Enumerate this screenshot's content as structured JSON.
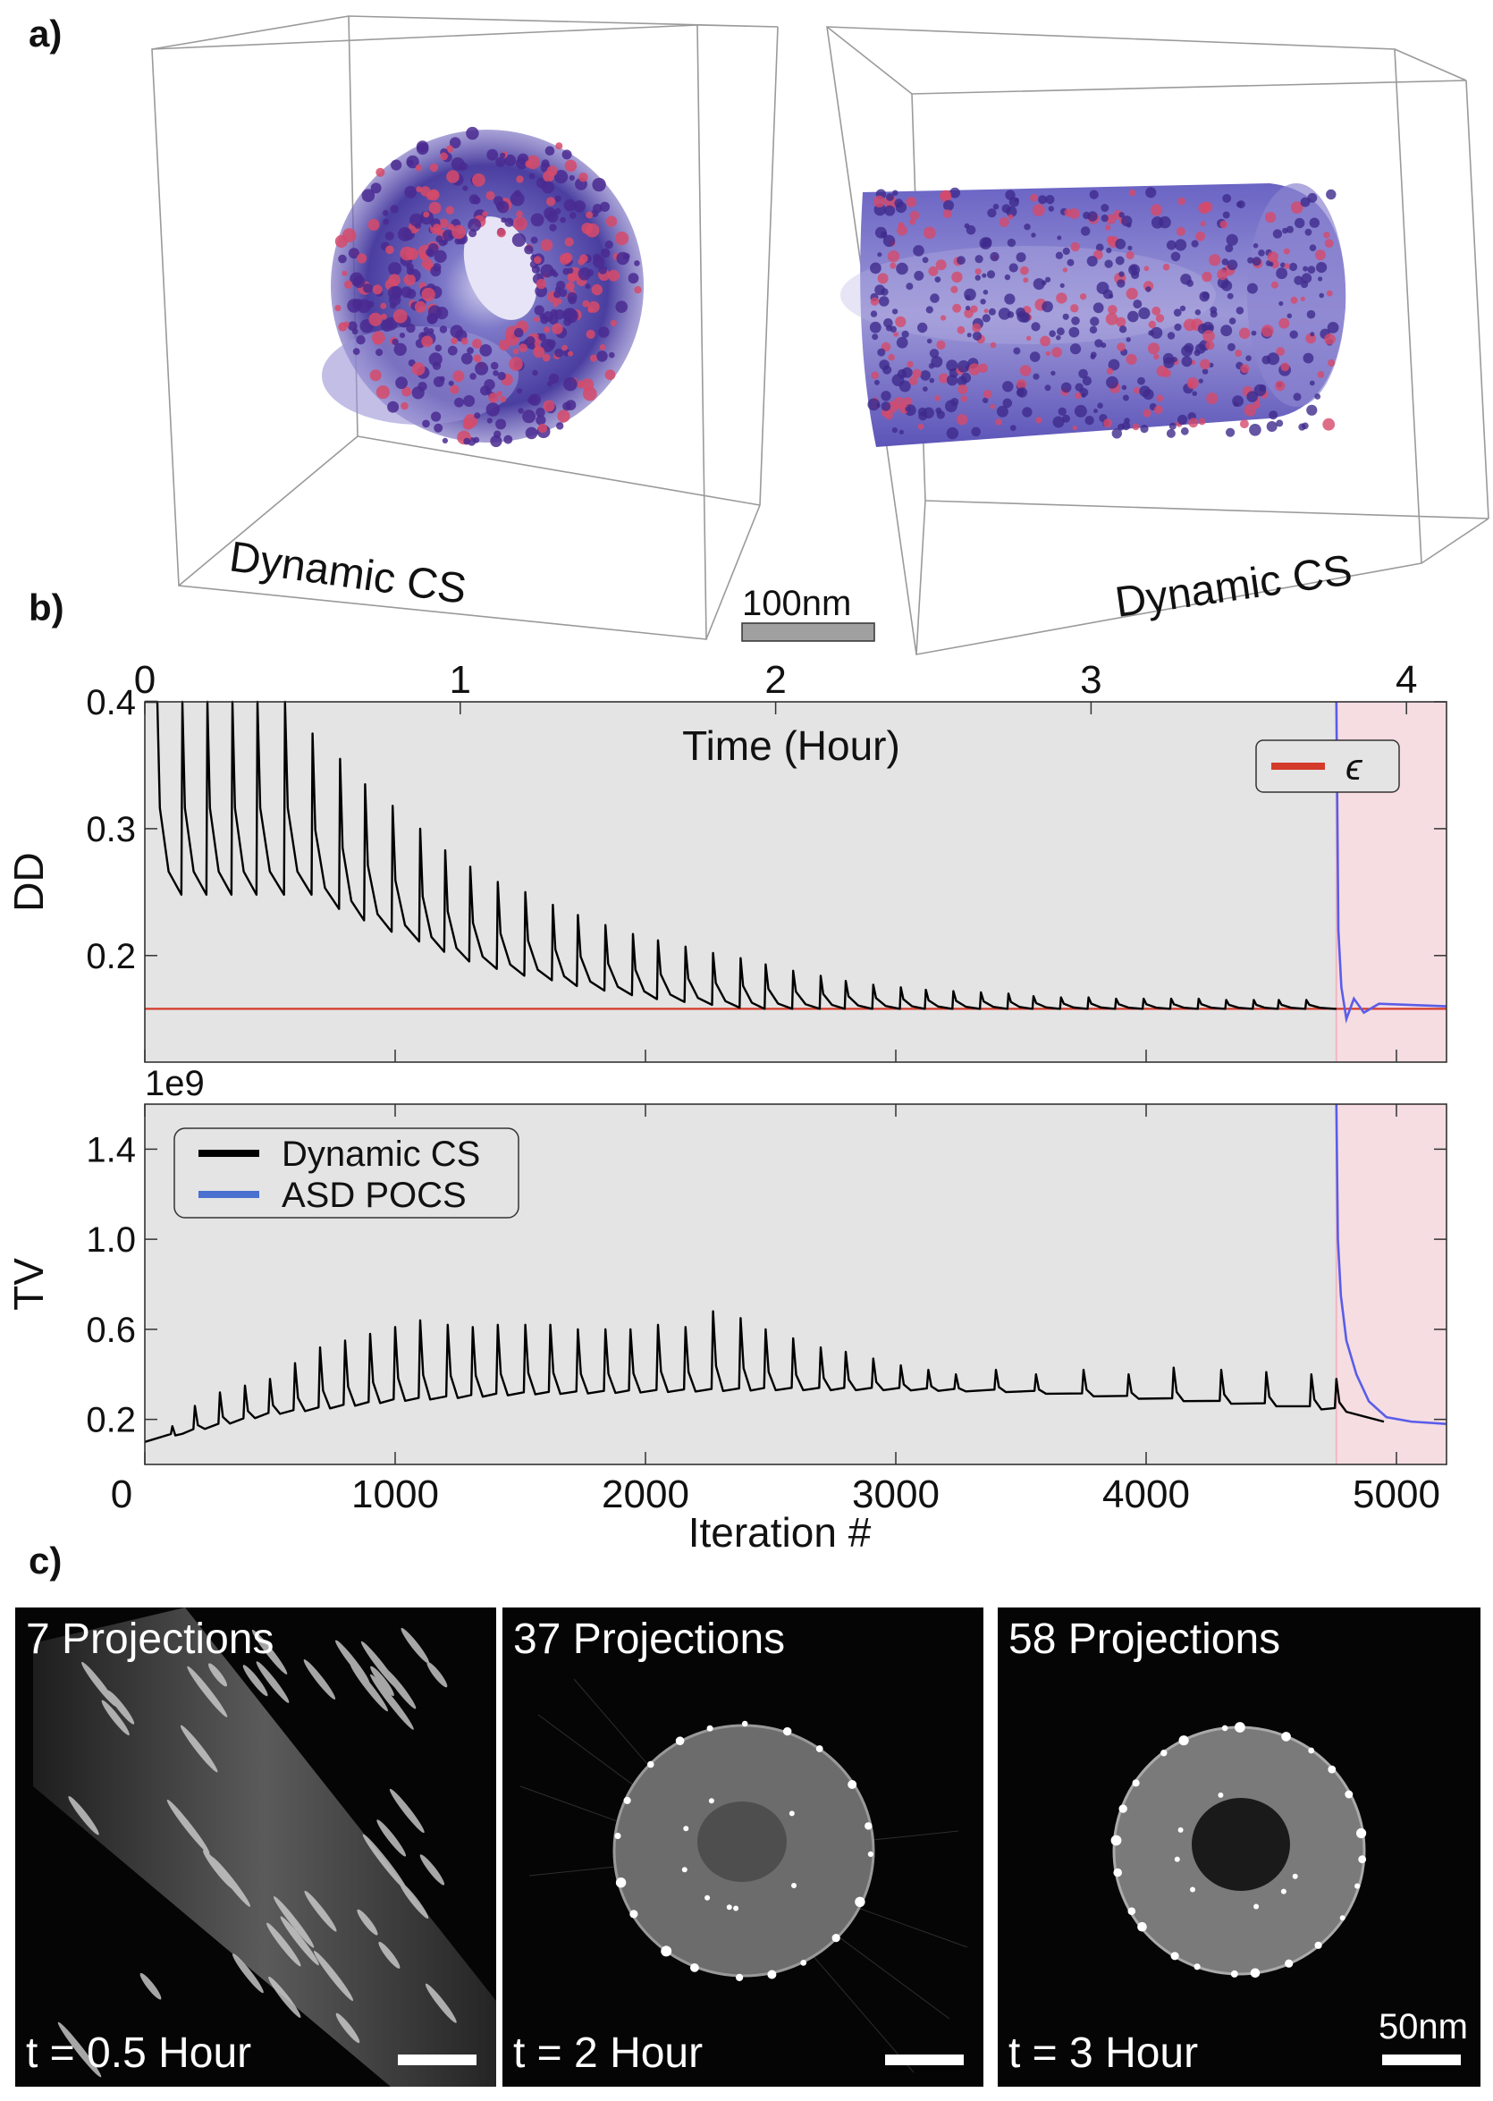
{
  "panels": {
    "a": "a)",
    "b": "b)",
    "c": "c)"
  },
  "panel_a": {
    "left_label": "Dynamic CS",
    "right_label": "Dynamic CS",
    "scalebar_label": "100nm"
  },
  "chart_data": [
    {
      "type": "line",
      "name": "dd-plot",
      "ylabel": "DD",
      "top_axis_label": "Time (Hour)",
      "top_ticks": [
        0,
        1,
        2,
        3,
        4
      ],
      "top_ticks_iteration": [
        0,
        1260,
        2520,
        3780,
        5040
      ],
      "ylim": [
        0.116,
        0.4
      ],
      "yticks": [
        0.2,
        0.3,
        0.4
      ],
      "xlim": [
        0,
        5200
      ],
      "legend": {
        "entries": [
          "ϵ"
        ],
        "placement": "top-right"
      },
      "epsilon": 0.158,
      "shaded_region_start": 4760,
      "series": [
        {
          "name": "Dynamic CS",
          "color": "#000000",
          "description_points": {
            "cycle_period": 104,
            "peaks": [
              [
                50,
                0.4
              ],
              [
                150,
                0.4
              ],
              [
                250,
                0.4
              ],
              [
                350,
                0.4
              ],
              [
                450,
                0.4
              ],
              [
                560,
                0.4
              ],
              [
                670,
                0.375
              ],
              [
                780,
                0.355
              ],
              [
                880,
                0.335
              ],
              [
                990,
                0.318
              ],
              [
                1100,
                0.3
              ],
              [
                1200,
                0.283
              ],
              [
                1300,
                0.27
              ],
              [
                1410,
                0.258
              ],
              [
                1520,
                0.25
              ],
              [
                1630,
                0.24
              ],
              [
                1730,
                0.232
              ],
              [
                1840,
                0.224
              ],
              [
                1950,
                0.217
              ],
              [
                2050,
                0.212
              ],
              [
                2160,
                0.207
              ],
              [
                2270,
                0.202
              ],
              [
                2380,
                0.198
              ],
              [
                2480,
                0.193
              ],
              [
                2590,
                0.188
              ],
              [
                2700,
                0.184
              ],
              [
                2800,
                0.18
              ],
              [
                2910,
                0.177
              ],
              [
                3020,
                0.175
              ],
              [
                3120,
                0.173
              ],
              [
                3230,
                0.172
              ],
              [
                3340,
                0.171
              ],
              [
                3450,
                0.17
              ],
              [
                3550,
                0.168
              ],
              [
                3660,
                0.167
              ],
              [
                3770,
                0.167
              ],
              [
                3880,
                0.166
              ],
              [
                3990,
                0.166
              ],
              [
                4100,
                0.166
              ],
              [
                4210,
                0.166
              ],
              [
                4320,
                0.165
              ],
              [
                4430,
                0.165
              ],
              [
                4530,
                0.165
              ],
              [
                4640,
                0.165
              ]
            ],
            "trough": 0.158,
            "end_x": 4760
          }
        },
        {
          "name": "ASD POCS",
          "color": "#5a5de8",
          "start_x": 4760,
          "start_y": 0.4,
          "end_x": 5200,
          "end_y": 0.16
        }
      ]
    },
    {
      "type": "line",
      "name": "tv-plot",
      "ylabel": "TV",
      "xlabel": "Iteration #",
      "offset_label": "1e9",
      "xticks": [
        0,
        1000,
        2000,
        3000,
        4000,
        5000
      ],
      "yticks": [
        0.2,
        0.6,
        1.0,
        1.4
      ],
      "xlim": [
        0,
        5200
      ],
      "ylim": [
        0.0,
        1.6
      ],
      "legend": {
        "entries": [
          "Dynamic CS",
          "ASD POCS"
        ],
        "colors": [
          "#000000",
          "#4a70d0"
        ],
        "placement": "upper-left"
      },
      "shaded_region_start": 4760,
      "series": [
        {
          "name": "Dynamic CS",
          "color": "#000000",
          "peaks": [
            [
              110,
              0.17
            ],
            [
              200,
              0.26
            ],
            [
              300,
              0.32
            ],
            [
              400,
              0.35
            ],
            [
              500,
              0.38
            ],
            [
              600,
              0.45
            ],
            [
              700,
              0.52
            ],
            [
              800,
              0.55
            ],
            [
              900,
              0.58
            ],
            [
              1000,
              0.61
            ],
            [
              1100,
              0.64
            ],
            [
              1210,
              0.62
            ],
            [
              1310,
              0.61
            ],
            [
              1410,
              0.62
            ],
            [
              1520,
              0.62
            ],
            [
              1620,
              0.62
            ],
            [
              1730,
              0.6
            ],
            [
              1840,
              0.6
            ],
            [
              1940,
              0.6
            ],
            [
              2050,
              0.62
            ],
            [
              2160,
              0.61
            ],
            [
              2270,
              0.68
            ],
            [
              2380,
              0.65
            ],
            [
              2480,
              0.6
            ],
            [
              2590,
              0.56
            ],
            [
              2700,
              0.52
            ],
            [
              2800,
              0.5
            ],
            [
              2910,
              0.47
            ],
            [
              3020,
              0.44
            ],
            [
              3130,
              0.42
            ],
            [
              3240,
              0.4
            ],
            [
              3400,
              0.42
            ],
            [
              3560,
              0.4
            ],
            [
              3750,
              0.42
            ],
            [
              3930,
              0.4
            ],
            [
              4110,
              0.43
            ],
            [
              4300,
              0.42
            ],
            [
              4480,
              0.41
            ],
            [
              4660,
              0.4
            ],
            [
              4760,
              0.38
            ]
          ],
          "base": [
            [
              0,
              0.08
            ],
            [
              500,
              0.2
            ],
            [
              1000,
              0.26
            ],
            [
              1500,
              0.29
            ],
            [
              2000,
              0.3
            ],
            [
              2500,
              0.31
            ],
            [
              3000,
              0.31
            ],
            [
              3500,
              0.3
            ],
            [
              4000,
              0.27
            ],
            [
              4500,
              0.24
            ],
            [
              4760,
              0.22
            ],
            [
              4950,
              0.19
            ]
          ]
        },
        {
          "name": "ASD POCS",
          "color": "#5a5de8",
          "start_x": 4760,
          "start_y": 1.6,
          "end_x": 5200,
          "end_y": 0.18
        }
      ]
    }
  ],
  "panel_c": [
    {
      "title": "7 Projections",
      "time": "t = 0.5 Hour"
    },
    {
      "title": "37 Projections",
      "time": "t = 2 Hour"
    },
    {
      "title": "58 Projections",
      "time": "t = 3 Hour",
      "scalebar_label": "50nm"
    }
  ]
}
